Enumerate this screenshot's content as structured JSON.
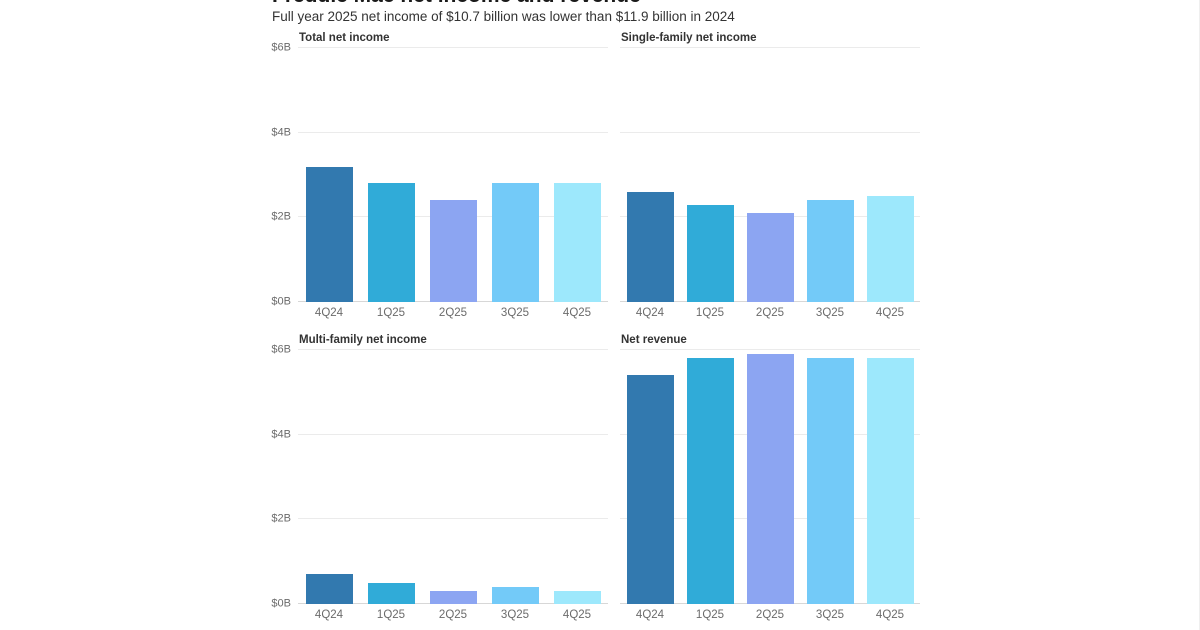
{
  "header": {
    "title": "Freddie Mac net income and revenue",
    "subtitle": "Full year 2025 net income of $10.7 billion was lower than $11.9 billion in 2024"
  },
  "chart_data": [
    {
      "type": "bar",
      "title": "Total net income",
      "categories": [
        "4Q24",
        "1Q25",
        "2Q25",
        "3Q25",
        "4Q25"
      ],
      "values": [
        3.2,
        2.8,
        2.4,
        2.8,
        2.8
      ],
      "bar_colors": [
        "#3279AF",
        "#30ABD8",
        "#8CA5F2",
        "#73CAF8",
        "#9DE8FC"
      ],
      "ylim": [
        0,
        6
      ],
      "ytick_labels": [
        "$0B",
        "$2B",
        "$4B",
        "$6B"
      ],
      "show_y_axis": true,
      "grid": true,
      "legend": "none"
    },
    {
      "type": "bar",
      "title": "Single-family net income",
      "categories": [
        "4Q24",
        "1Q25",
        "2Q25",
        "3Q25",
        "4Q25"
      ],
      "values": [
        2.6,
        2.3,
        2.1,
        2.4,
        2.5
      ],
      "bar_colors": [
        "#3279AF",
        "#30ABD8",
        "#8CA5F2",
        "#73CAF8",
        "#9DE8FC"
      ],
      "ylim": [
        0,
        6
      ],
      "ytick_labels": [
        "$0B",
        "$2B",
        "$4B",
        "$6B"
      ],
      "show_y_axis": false,
      "grid": true,
      "legend": "none"
    },
    {
      "type": "bar",
      "title": "Multi-family net income",
      "categories": [
        "4Q24",
        "1Q25",
        "2Q25",
        "3Q25",
        "4Q25"
      ],
      "values": [
        0.7,
        0.5,
        0.3,
        0.4,
        0.3
      ],
      "bar_colors": [
        "#3279AF",
        "#30ABD8",
        "#8CA5F2",
        "#73CAF8",
        "#9DE8FC"
      ],
      "ylim": [
        0,
        6
      ],
      "ytick_labels": [
        "$0B",
        "$2B",
        "$4B",
        "$6B"
      ],
      "show_y_axis": true,
      "grid": true,
      "legend": "none"
    },
    {
      "type": "bar",
      "title": "Net revenue",
      "categories": [
        "4Q24",
        "1Q25",
        "2Q25",
        "3Q25",
        "4Q25"
      ],
      "values": [
        5.4,
        5.8,
        5.9,
        5.8,
        5.8
      ],
      "bar_colors": [
        "#3279AF",
        "#30ABD8",
        "#8CA5F2",
        "#73CAF8",
        "#9DE8FC"
      ],
      "ylim": [
        0,
        6
      ],
      "ytick_labels": [
        "$0B",
        "$2B",
        "$4B",
        "$6B"
      ],
      "show_y_axis": false,
      "grid": true,
      "legend": "none"
    }
  ]
}
